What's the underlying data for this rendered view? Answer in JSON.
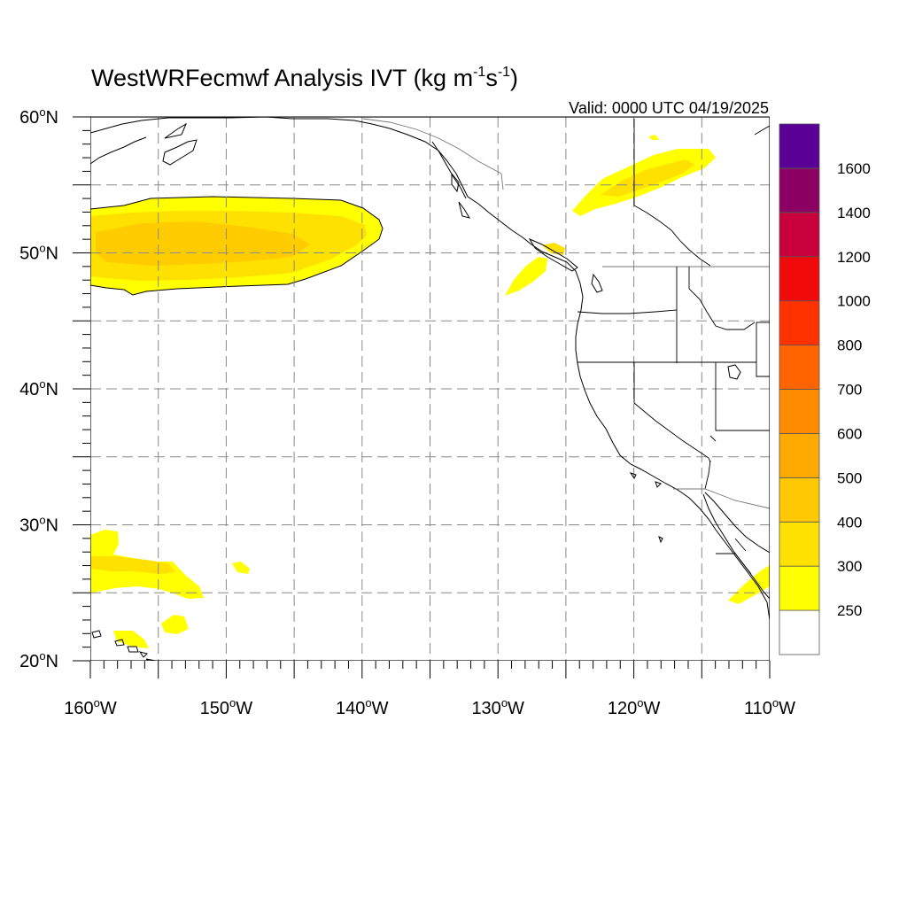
{
  "title": {
    "main": "WestWRFecmwf Analysis IVT (kg m",
    "sup1": "-1",
    "mid": "s",
    "sup2": "-1",
    "end": ")"
  },
  "valid_time": "Valid: 0000 UTC 04/19/2025",
  "map": {
    "lon_range": [
      -160,
      -110
    ],
    "lat_range": [
      20,
      60
    ],
    "lon_ticks": [
      {
        "value": -160,
        "label": "160",
        "hemi": "W"
      },
      {
        "value": -150,
        "label": "150",
        "hemi": "W"
      },
      {
        "value": -140,
        "label": "140",
        "hemi": "W"
      },
      {
        "value": -130,
        "label": "130",
        "hemi": "W"
      },
      {
        "value": -120,
        "label": "120",
        "hemi": "W"
      },
      {
        "value": -110,
        "label": "110",
        "hemi": "W"
      }
    ],
    "lat_ticks": [
      {
        "value": 20,
        "label": "20",
        "hemi": "N"
      },
      {
        "value": 30,
        "label": "30",
        "hemi": "N"
      },
      {
        "value": 40,
        "label": "40",
        "hemi": "N"
      },
      {
        "value": 50,
        "label": "50",
        "hemi": "N"
      },
      {
        "value": 60,
        "label": "60",
        "hemi": "N"
      }
    ],
    "gridlines": true,
    "grid_spacing_deg": 5
  },
  "colorbar": {
    "levels": [
      "250",
      "300",
      "400",
      "500",
      "600",
      "700",
      "800",
      "1000",
      "1200",
      "1400",
      "1600"
    ],
    "colors": [
      "#FFFFFF",
      "#FFFF00",
      "#FFE100",
      "#FFC800",
      "#FFAA00",
      "#FF8C00",
      "#FF6400",
      "#FF3200",
      "#F00A0A",
      "#C8003C",
      "#8C0064",
      "#5A0096"
    ]
  },
  "ivt_features": [
    {
      "name": "North Pacific plume",
      "lon": [
        -160,
        -138.5
      ],
      "lat": [
        47,
        54.2
      ],
      "max_level": "400"
    },
    {
      "name": "Subtropical plume near Hawaii",
      "lon": [
        -160,
        -152
      ],
      "lat": [
        25,
        29.5
      ],
      "max_level": "400"
    },
    {
      "name": "Plume over British Columbia",
      "lon": [
        -124.5,
        -114.5
      ],
      "lat": [
        53,
        58.5
      ],
      "max_level": "300"
    },
    {
      "name": "Plume off Vancouver Island",
      "lon": [
        -129.5,
        -124.5
      ],
      "lat": [
        47.5,
        51.5
      ],
      "max_level": "300"
    },
    {
      "name": "Plume near Baja / Mexico",
      "lon": [
        -113.5,
        -110
      ],
      "lat": [
        24.5,
        27.5
      ],
      "max_level": "300"
    }
  ]
}
